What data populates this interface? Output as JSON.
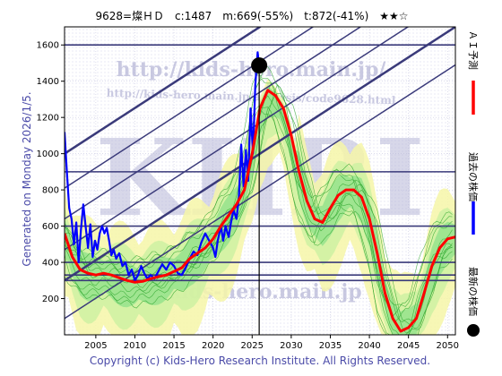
{
  "header": {
    "title": "9628=燦ＨＤ　c:1487　m:669(-55%)　t:872(-41%)　★★☆"
  },
  "side_text": "Generated on Monday 2026/1/5.",
  "copyright": "Copyright (c) Kids-Hero Research Institute. All Rights Reserved.",
  "watermarks": {
    "url": "http://kids-hero.main.jp/",
    "analysis_url": "http://kids-hero.main.jp/analysis/code9628.html",
    "email": "info@kids-hero.main.jp",
    "logo": "KHRI"
  },
  "legend": [
    {
      "label": "ＡＩ予測",
      "color": "#ff0000",
      "kind": "line"
    },
    {
      "label": "過去の株価",
      "color": "#0000ff",
      "kind": "line"
    },
    {
      "label": "最新の株価",
      "color": "#000000",
      "kind": "dot"
    }
  ],
  "chart_data": {
    "type": "line",
    "title": "9628=燦ＨＤ　c:1487　m:669(-55%)　t:872(-41%)　★★☆",
    "xlabel": "",
    "ylabel": "",
    "xlim": [
      2001,
      2051
    ],
    "ylim": [
      0,
      1700
    ],
    "x_ticks": [
      2005,
      2010,
      2015,
      2020,
      2025,
      2030,
      2035,
      2040,
      2045,
      2050
    ],
    "y_ticks": [
      200,
      400,
      600,
      800,
      1000,
      1200,
      1400,
      1600
    ],
    "grid": true,
    "current": {
      "x": 2025.9,
      "y": 1487
    },
    "horizontal_lines": [
      1600,
      900,
      600,
      400,
      330,
      300
    ],
    "trend_channels": [
      {
        "slope": 28,
        "intercept_2001": 1000,
        "width": 2.5
      },
      {
        "slope": 28,
        "intercept_2001": 810,
        "width": 1.5
      },
      {
        "slope": 28,
        "intercept_2001": 640,
        "width": 1.5
      },
      {
        "slope": 28,
        "intercept_2001": 470,
        "width": 1.5
      },
      {
        "slope": 28,
        "intercept_2001": 300,
        "width": 2.5
      },
      {
        "slope": 28,
        "intercept_2001": 90,
        "width": 1.5
      }
    ],
    "series": [
      {
        "name": "過去の株価",
        "color": "#0000ff",
        "points": [
          [
            2001.0,
            1120
          ],
          [
            2001.3,
            900
          ],
          [
            2001.6,
            700
          ],
          [
            2001.9,
            640
          ],
          [
            2002.2,
            500
          ],
          [
            2002.5,
            620
          ],
          [
            2002.8,
            400
          ],
          [
            2003.1,
            580
          ],
          [
            2003.4,
            720
          ],
          [
            2003.7,
            600
          ],
          [
            2004.0,
            480
          ],
          [
            2004.3,
            610
          ],
          [
            2004.6,
            430
          ],
          [
            2004.9,
            520
          ],
          [
            2005.2,
            470
          ],
          [
            2005.5,
            560
          ],
          [
            2005.8,
            600
          ],
          [
            2006.1,
            560
          ],
          [
            2006.4,
            590
          ],
          [
            2006.7,
            520
          ],
          [
            2007.0,
            440
          ],
          [
            2007.3,
            470
          ],
          [
            2007.6,
            420
          ],
          [
            2008.0,
            450
          ],
          [
            2008.4,
            380
          ],
          [
            2008.8,
            400
          ],
          [
            2009.2,
            330
          ],
          [
            2009.6,
            360
          ],
          [
            2010.0,
            300
          ],
          [
            2010.4,
            330
          ],
          [
            2010.8,
            380
          ],
          [
            2011.2,
            340
          ],
          [
            2011.6,
            310
          ],
          [
            2012.0,
            330
          ],
          [
            2012.5,
            310
          ],
          [
            2013.0,
            350
          ],
          [
            2013.5,
            390
          ],
          [
            2014.0,
            360
          ],
          [
            2014.5,
            400
          ],
          [
            2015.0,
            380
          ],
          [
            2015.5,
            340
          ],
          [
            2016.0,
            330
          ],
          [
            2016.5,
            370
          ],
          [
            2017.0,
            420
          ],
          [
            2017.5,
            460
          ],
          [
            2018.0,
            440
          ],
          [
            2018.5,
            510
          ],
          [
            2019.0,
            560
          ],
          [
            2019.5,
            520
          ],
          [
            2020.0,
            480
          ],
          [
            2020.3,
            430
          ],
          [
            2020.6,
            520
          ],
          [
            2021.0,
            600
          ],
          [
            2021.3,
            520
          ],
          [
            2021.6,
            600
          ],
          [
            2022.0,
            540
          ],
          [
            2022.3,
            620
          ],
          [
            2022.6,
            690
          ],
          [
            2023.0,
            640
          ],
          [
            2023.3,
            760
          ],
          [
            2023.6,
            1050
          ],
          [
            2023.9,
            820
          ],
          [
            2024.2,
            1020
          ],
          [
            2024.5,
            850
          ],
          [
            2024.8,
            1250
          ],
          [
            2025.1,
            1000
          ],
          [
            2025.4,
            1380
          ],
          [
            2025.7,
            1560
          ],
          [
            2025.9,
            1487
          ]
        ]
      },
      {
        "name": "ＡＩ予測",
        "color": "#ff0000",
        "points": [
          [
            2001.0,
            560
          ],
          [
            2002.0,
            430
          ],
          [
            2003.0,
            360
          ],
          [
            2004.0,
            340
          ],
          [
            2005.0,
            330
          ],
          [
            2006.0,
            340
          ],
          [
            2007.0,
            330
          ],
          [
            2008.0,
            315
          ],
          [
            2009.0,
            300
          ],
          [
            2010.0,
            290
          ],
          [
            2011.0,
            295
          ],
          [
            2012.0,
            310
          ],
          [
            2013.0,
            320
          ],
          [
            2014.0,
            330
          ],
          [
            2015.0,
            350
          ],
          [
            2016.0,
            370
          ],
          [
            2017.0,
            420
          ],
          [
            2018.0,
            450
          ],
          [
            2019.0,
            480
          ],
          [
            2020.0,
            530
          ],
          [
            2021.0,
            600
          ],
          [
            2022.0,
            660
          ],
          [
            2023.0,
            720
          ],
          [
            2024.0,
            800
          ],
          [
            2025.0,
            1000
          ],
          [
            2026.0,
            1250
          ],
          [
            2027.0,
            1350
          ],
          [
            2028.0,
            1320
          ],
          [
            2029.0,
            1250
          ],
          [
            2030.0,
            1100
          ],
          [
            2031.0,
            900
          ],
          [
            2032.0,
            740
          ],
          [
            2033.0,
            640
          ],
          [
            2034.0,
            620
          ],
          [
            2035.0,
            700
          ],
          [
            2036.0,
            770
          ],
          [
            2037.0,
            800
          ],
          [
            2038.0,
            800
          ],
          [
            2039.0,
            760
          ],
          [
            2040.0,
            640
          ],
          [
            2041.0,
            450
          ],
          [
            2042.0,
            230
          ],
          [
            2043.0,
            90
          ],
          [
            2044.0,
            20
          ],
          [
            2045.0,
            40
          ],
          [
            2046.0,
            90
          ],
          [
            2047.0,
            230
          ],
          [
            2048.0,
            380
          ],
          [
            2049.0,
            480
          ],
          [
            2050.0,
            530
          ],
          [
            2051.0,
            540
          ]
        ]
      }
    ]
  }
}
